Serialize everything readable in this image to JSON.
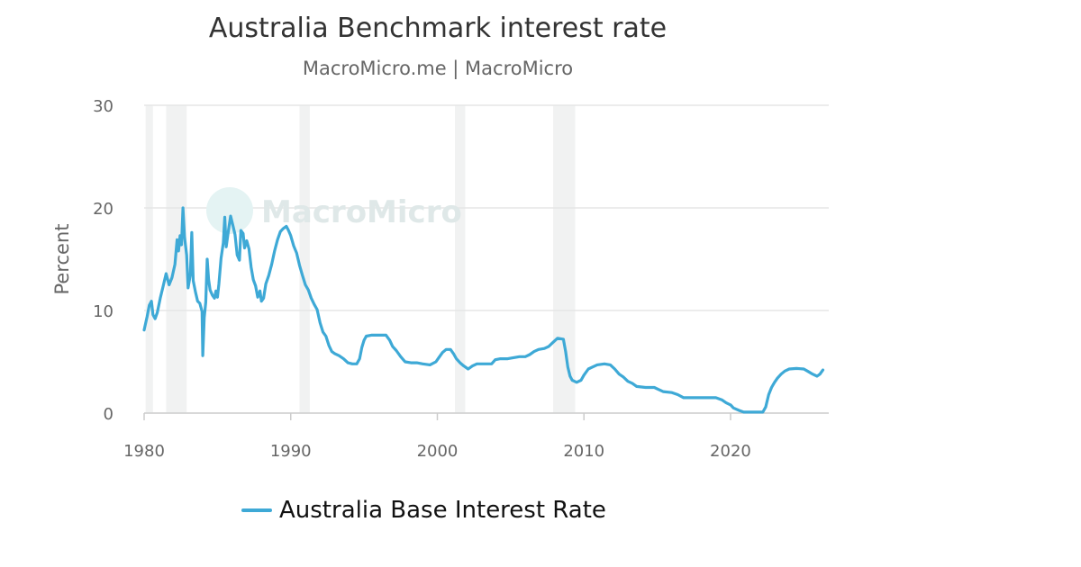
{
  "chart_data": {
    "type": "line",
    "title": "Australia Benchmark interest rate",
    "subtitle": "MacroMicro.me | MacroMicro",
    "ylabel": "Percent",
    "xlabel": "",
    "xlim": [
      1980,
      2026.7
    ],
    "ylim": [
      0,
      30
    ],
    "y_ticks": [
      0,
      10,
      20,
      30
    ],
    "x_ticks": [
      1980,
      1990,
      2000,
      2010,
      2020
    ],
    "grid": true,
    "legend_position": "bottom",
    "watermark": "MacroMicro",
    "recession_bands": [
      [
        1980.1,
        1980.6
      ],
      [
        1981.5,
        1982.9
      ],
      [
        1990.6,
        1991.3
      ],
      [
        2001.2,
        2001.9
      ],
      [
        2007.9,
        2009.4
      ]
    ],
    "series": [
      {
        "name": "Australia Base Interest Rate",
        "color": "#3ea9d6",
        "points": [
          [
            1980.0,
            8.1
          ],
          [
            1980.2,
            9.4
          ],
          [
            1980.35,
            10.5
          ],
          [
            1980.5,
            10.9
          ],
          [
            1980.6,
            9.6
          ],
          [
            1980.75,
            9.2
          ],
          [
            1980.9,
            9.8
          ],
          [
            1981.1,
            11.2
          ],
          [
            1981.3,
            12.4
          ],
          [
            1981.5,
            13.6
          ],
          [
            1981.7,
            12.5
          ],
          [
            1981.9,
            13.2
          ],
          [
            1982.1,
            14.5
          ],
          [
            1982.25,
            16.9
          ],
          [
            1982.35,
            15.8
          ],
          [
            1982.45,
            17.3
          ],
          [
            1982.55,
            16.4
          ],
          [
            1982.65,
            20.0
          ],
          [
            1982.75,
            17.2
          ],
          [
            1982.9,
            15.4
          ],
          [
            1983.0,
            12.2
          ],
          [
            1983.15,
            13.5
          ],
          [
            1983.25,
            17.6
          ],
          [
            1983.35,
            12.9
          ],
          [
            1983.5,
            11.8
          ],
          [
            1983.65,
            10.9
          ],
          [
            1983.8,
            10.7
          ],
          [
            1983.95,
            9.9
          ],
          [
            1984.0,
            5.6
          ],
          [
            1984.1,
            9.3
          ],
          [
            1984.2,
            10.8
          ],
          [
            1984.3,
            15.0
          ],
          [
            1984.4,
            13.0
          ],
          [
            1984.5,
            12.0
          ],
          [
            1984.65,
            11.5
          ],
          [
            1984.8,
            11.2
          ],
          [
            1984.9,
            11.9
          ],
          [
            1985.0,
            11.3
          ],
          [
            1985.1,
            12.6
          ],
          [
            1985.25,
            15.1
          ],
          [
            1985.4,
            16.6
          ],
          [
            1985.5,
            19.1
          ],
          [
            1985.6,
            16.2
          ],
          [
            1985.75,
            17.8
          ],
          [
            1985.9,
            19.2
          ],
          [
            1986.05,
            18.3
          ],
          [
            1986.2,
            17.4
          ],
          [
            1986.35,
            15.4
          ],
          [
            1986.5,
            14.9
          ],
          [
            1986.6,
            17.8
          ],
          [
            1986.75,
            17.5
          ],
          [
            1986.85,
            16.1
          ],
          [
            1987.0,
            16.8
          ],
          [
            1987.15,
            16.0
          ],
          [
            1987.3,
            14.2
          ],
          [
            1987.45,
            13.0
          ],
          [
            1987.6,
            12.4
          ],
          [
            1987.75,
            11.3
          ],
          [
            1987.9,
            11.9
          ],
          [
            1988.0,
            10.9
          ],
          [
            1988.15,
            11.2
          ],
          [
            1988.3,
            12.6
          ],
          [
            1988.5,
            13.4
          ],
          [
            1988.7,
            14.5
          ],
          [
            1988.9,
            15.8
          ],
          [
            1989.1,
            16.9
          ],
          [
            1989.3,
            17.7
          ],
          [
            1989.5,
            18.0
          ],
          [
            1989.7,
            18.2
          ],
          [
            1989.85,
            17.8
          ],
          [
            1990.0,
            17.3
          ],
          [
            1990.2,
            16.3
          ],
          [
            1990.4,
            15.6
          ],
          [
            1990.6,
            14.4
          ],
          [
            1990.8,
            13.4
          ],
          [
            1991.0,
            12.5
          ],
          [
            1991.2,
            12.0
          ],
          [
            1991.4,
            11.2
          ],
          [
            1991.6,
            10.6
          ],
          [
            1991.8,
            10.1
          ],
          [
            1992.0,
            8.8
          ],
          [
            1992.2,
            7.9
          ],
          [
            1992.4,
            7.5
          ],
          [
            1992.6,
            6.6
          ],
          [
            1992.8,
            6.0
          ],
          [
            1993.0,
            5.8
          ],
          [
            1993.3,
            5.6
          ],
          [
            1993.6,
            5.3
          ],
          [
            1993.9,
            4.9
          ],
          [
            1994.2,
            4.8
          ],
          [
            1994.5,
            4.8
          ],
          [
            1994.7,
            5.3
          ],
          [
            1994.85,
            6.4
          ],
          [
            1995.0,
            7.1
          ],
          [
            1995.15,
            7.5
          ],
          [
            1995.5,
            7.6
          ],
          [
            1996.0,
            7.6
          ],
          [
            1996.5,
            7.6
          ],
          [
            1996.75,
            7.1
          ],
          [
            1996.95,
            6.5
          ],
          [
            1997.2,
            6.1
          ],
          [
            1997.5,
            5.5
          ],
          [
            1997.8,
            5.0
          ],
          [
            1998.2,
            4.9
          ],
          [
            1998.6,
            4.9
          ],
          [
            1999.0,
            4.8
          ],
          [
            1999.5,
            4.7
          ],
          [
            1999.9,
            5.0
          ],
          [
            2000.1,
            5.4
          ],
          [
            2000.35,
            5.9
          ],
          [
            2000.6,
            6.2
          ],
          [
            2000.9,
            6.2
          ],
          [
            2001.1,
            5.8
          ],
          [
            2001.3,
            5.3
          ],
          [
            2001.55,
            4.9
          ],
          [
            2001.8,
            4.6
          ],
          [
            2002.1,
            4.3
          ],
          [
            2002.4,
            4.6
          ],
          [
            2002.7,
            4.8
          ],
          [
            2003.2,
            4.8
          ],
          [
            2003.7,
            4.8
          ],
          [
            2003.95,
            5.2
          ],
          [
            2004.3,
            5.3
          ],
          [
            2004.8,
            5.3
          ],
          [
            2005.2,
            5.4
          ],
          [
            2005.6,
            5.5
          ],
          [
            2006.0,
            5.5
          ],
          [
            2006.3,
            5.7
          ],
          [
            2006.6,
            6.0
          ],
          [
            2006.9,
            6.2
          ],
          [
            2007.3,
            6.3
          ],
          [
            2007.6,
            6.5
          ],
          [
            2007.9,
            6.9
          ],
          [
            2008.2,
            7.3
          ],
          [
            2008.6,
            7.2
          ],
          [
            2008.75,
            6.0
          ],
          [
            2008.9,
            4.5
          ],
          [
            2009.05,
            3.6
          ],
          [
            2009.2,
            3.2
          ],
          [
            2009.5,
            3.0
          ],
          [
            2009.8,
            3.2
          ],
          [
            2010.0,
            3.7
          ],
          [
            2010.3,
            4.3
          ],
          [
            2010.6,
            4.5
          ],
          [
            2010.9,
            4.7
          ],
          [
            2011.4,
            4.8
          ],
          [
            2011.8,
            4.7
          ],
          [
            2012.1,
            4.3
          ],
          [
            2012.4,
            3.8
          ],
          [
            2012.7,
            3.5
          ],
          [
            2013.0,
            3.1
          ],
          [
            2013.3,
            2.9
          ],
          [
            2013.6,
            2.6
          ],
          [
            2014.2,
            2.5
          ],
          [
            2014.8,
            2.5
          ],
          [
            2015.1,
            2.3
          ],
          [
            2015.4,
            2.1
          ],
          [
            2016.0,
            2.0
          ],
          [
            2016.4,
            1.8
          ],
          [
            2016.8,
            1.5
          ],
          [
            2017.5,
            1.5
          ],
          [
            2018.2,
            1.5
          ],
          [
            2019.0,
            1.5
          ],
          [
            2019.4,
            1.3
          ],
          [
            2019.7,
            1.0
          ],
          [
            2020.0,
            0.8
          ],
          [
            2020.2,
            0.5
          ],
          [
            2020.6,
            0.25
          ],
          [
            2020.9,
            0.1
          ],
          [
            2021.5,
            0.1
          ],
          [
            2022.2,
            0.1
          ],
          [
            2022.4,
            0.6
          ],
          [
            2022.6,
            1.8
          ],
          [
            2022.8,
            2.5
          ],
          [
            2023.0,
            3.0
          ],
          [
            2023.2,
            3.4
          ],
          [
            2023.45,
            3.8
          ],
          [
            2023.7,
            4.1
          ],
          [
            2024.0,
            4.3
          ],
          [
            2024.5,
            4.35
          ],
          [
            2025.0,
            4.3
          ],
          [
            2025.3,
            4.05
          ],
          [
            2025.6,
            3.8
          ],
          [
            2025.9,
            3.6
          ],
          [
            2026.1,
            3.8
          ],
          [
            2026.3,
            4.2
          ]
        ]
      }
    ]
  }
}
